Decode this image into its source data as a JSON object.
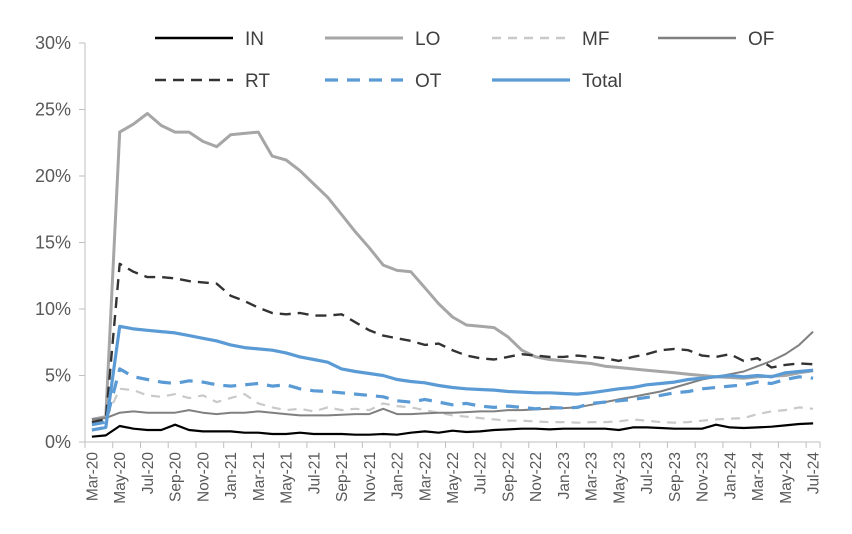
{
  "chart_data": {
    "type": "line",
    "title": "",
    "xlabel": "",
    "ylabel": "",
    "ylim": [
      0,
      30
    ],
    "grid": false,
    "legend_position": "top",
    "y_tick_labels": [
      "0%",
      "5%",
      "10%",
      "15%",
      "20%",
      "25%",
      "30%"
    ],
    "y_tick_values": [
      0,
      5,
      10,
      15,
      20,
      25,
      30
    ],
    "x_label_every": 2,
    "axis_color": "#bfbfbf",
    "tick_label_color": "#595959",
    "legend_text_color": "#404040",
    "months": [
      "Mar-20",
      "Apr-20",
      "May-20",
      "Jun-20",
      "Jul-20",
      "Aug-20",
      "Sep-20",
      "Oct-20",
      "Nov-20",
      "Dec-20",
      "Jan-21",
      "Feb-21",
      "Mar-21",
      "Apr-21",
      "May-21",
      "Jun-21",
      "Jul-21",
      "Aug-21",
      "Sep-21",
      "Oct-21",
      "Nov-21",
      "Dec-21",
      "Jan-22",
      "Feb-22",
      "Mar-22",
      "Apr-22",
      "May-22",
      "Jun-22",
      "Jul-22",
      "Aug-22",
      "Sep-22",
      "Oct-22",
      "Nov-22",
      "Dec-22",
      "Jan-23",
      "Feb-23",
      "Mar-23",
      "Apr-23",
      "May-23",
      "Jun-23",
      "Jul-23",
      "Aug-23",
      "Sep-23",
      "Oct-23",
      "Nov-23",
      "Dec-23",
      "Jan-24",
      "Feb-24",
      "Mar-24",
      "Apr-24",
      "May-24",
      "Jun-24",
      "Jul-24"
    ],
    "legend_rows": [
      [
        "IN",
        "LO",
        "MF",
        "OF"
      ],
      [
        "RT",
        "OT",
        "Total"
      ]
    ],
    "series": [
      {
        "name": "IN",
        "color": "#000000",
        "dasharray": "",
        "width": 2.2,
        "values": [
          0.4,
          0.5,
          1.2,
          1.0,
          0.9,
          0.9,
          1.3,
          0.9,
          0.8,
          0.8,
          0.8,
          0.7,
          0.7,
          0.6,
          0.6,
          0.7,
          0.6,
          0.6,
          0.6,
          0.55,
          0.55,
          0.6,
          0.55,
          0.7,
          0.8,
          0.7,
          0.85,
          0.75,
          0.8,
          0.9,
          0.95,
          1.0,
          1.0,
          0.95,
          1.0,
          1.0,
          1.0,
          1.0,
          0.9,
          1.1,
          1.1,
          1.05,
          1.0,
          1.0,
          1.0,
          1.3,
          1.1,
          1.05,
          1.1,
          1.15,
          1.25,
          1.35,
          1.4
        ]
      },
      {
        "name": "LO",
        "color": "#a6a6a6",
        "dasharray": "",
        "width": 3,
        "values": [
          1.7,
          1.9,
          23.3,
          23.9,
          24.7,
          23.8,
          23.3,
          23.3,
          22.6,
          22.2,
          23.1,
          23.2,
          23.3,
          21.5,
          21.2,
          20.4,
          19.4,
          18.4,
          17.1,
          15.8,
          14.6,
          13.3,
          12.9,
          12.8,
          11.6,
          10.4,
          9.4,
          8.8,
          8.7,
          8.6,
          7.9,
          6.9,
          6.4,
          6.2,
          6.1,
          6.0,
          5.9,
          5.7,
          5.6,
          5.5,
          5.4,
          5.3,
          5.2,
          5.1,
          5.0,
          4.9,
          4.85,
          4.8,
          4.9,
          4.95,
          5.0,
          5.2,
          5.35
        ]
      },
      {
        "name": "MF",
        "color": "#c9c9c9",
        "dasharray": "9 7",
        "width": 2.2,
        "values": [
          1.6,
          1.7,
          4.0,
          3.9,
          3.5,
          3.4,
          3.6,
          3.3,
          3.5,
          3.0,
          3.3,
          3.6,
          2.9,
          2.6,
          2.4,
          2.5,
          2.3,
          2.6,
          2.4,
          2.5,
          2.4,
          2.9,
          2.7,
          2.6,
          2.4,
          2.2,
          2.0,
          1.9,
          1.8,
          1.7,
          1.6,
          1.6,
          1.55,
          1.5,
          1.5,
          1.45,
          1.5,
          1.5,
          1.55,
          1.7,
          1.6,
          1.5,
          1.45,
          1.5,
          1.6,
          1.7,
          1.75,
          1.8,
          2.1,
          2.3,
          2.4,
          2.6,
          2.5
        ]
      },
      {
        "name": "OF",
        "color": "#808080",
        "dasharray": "",
        "width": 2,
        "values": [
          1.7,
          1.8,
          2.2,
          2.3,
          2.2,
          2.2,
          2.2,
          2.4,
          2.2,
          2.1,
          2.2,
          2.2,
          2.3,
          2.2,
          2.1,
          2.0,
          2.0,
          2.0,
          2.05,
          2.1,
          2.1,
          2.5,
          2.1,
          2.1,
          2.15,
          2.2,
          2.2,
          2.25,
          2.3,
          2.3,
          2.4,
          2.4,
          2.45,
          2.5,
          2.55,
          2.6,
          2.8,
          3.0,
          3.2,
          3.4,
          3.6,
          3.8,
          4.1,
          4.4,
          4.7,
          4.9,
          5.1,
          5.3,
          5.7,
          6.1,
          6.6,
          7.3,
          8.3
        ]
      },
      {
        "name": "RT",
        "color": "#333333",
        "dasharray": "11 7",
        "width": 2.4,
        "values": [
          1.5,
          1.7,
          13.4,
          12.8,
          12.4,
          12.4,
          12.3,
          12.1,
          12.0,
          11.9,
          11.0,
          10.6,
          10.1,
          9.7,
          9.6,
          9.7,
          9.5,
          9.5,
          9.6,
          9.0,
          8.4,
          8.0,
          7.8,
          7.6,
          7.3,
          7.4,
          6.9,
          6.5,
          6.3,
          6.2,
          6.4,
          6.6,
          6.5,
          6.4,
          6.4,
          6.5,
          6.4,
          6.3,
          6.1,
          6.4,
          6.6,
          6.9,
          7.0,
          6.9,
          6.5,
          6.4,
          6.6,
          6.1,
          6.3,
          5.6,
          5.8,
          5.9,
          5.85
        ]
      },
      {
        "name": "OT",
        "color": "#5b9bd5",
        "dasharray": "13 9",
        "width": 3.2,
        "values": [
          1.3,
          1.5,
          5.5,
          4.9,
          4.7,
          4.5,
          4.4,
          4.6,
          4.5,
          4.3,
          4.2,
          4.3,
          4.4,
          4.2,
          4.3,
          4.0,
          3.85,
          3.8,
          3.7,
          3.6,
          3.5,
          3.4,
          3.1,
          3.0,
          3.2,
          3.0,
          2.8,
          2.9,
          2.7,
          2.6,
          2.7,
          2.6,
          2.5,
          2.6,
          2.55,
          2.6,
          2.9,
          3.0,
          3.1,
          3.2,
          3.35,
          3.5,
          3.7,
          3.8,
          4.0,
          4.1,
          4.2,
          4.3,
          4.5,
          4.4,
          4.7,
          4.9,
          4.8
        ]
      },
      {
        "name": "Total",
        "color": "#5b9bd5",
        "dasharray": "",
        "width": 3.2,
        "values": [
          0.9,
          1.1,
          8.7,
          8.5,
          8.4,
          8.3,
          8.2,
          8.0,
          7.8,
          7.6,
          7.3,
          7.1,
          7.0,
          6.9,
          6.7,
          6.4,
          6.2,
          6.0,
          5.5,
          5.3,
          5.15,
          5.0,
          4.7,
          4.55,
          4.45,
          4.25,
          4.1,
          4.0,
          3.95,
          3.9,
          3.8,
          3.75,
          3.7,
          3.7,
          3.65,
          3.6,
          3.7,
          3.85,
          4.0,
          4.1,
          4.3,
          4.4,
          4.5,
          4.7,
          4.8,
          4.9,
          5.0,
          4.9,
          5.0,
          4.9,
          5.2,
          5.3,
          5.4
        ]
      }
    ]
  }
}
